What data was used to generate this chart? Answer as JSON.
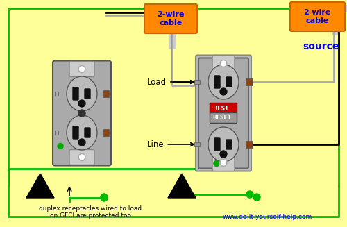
{
  "bg_color": "#FFFF99",
  "wire_black": "#000000",
  "wire_white": "#AAAAAA",
  "wire_green": "#00BB00",
  "outlet_gray": "#AAAAAA",
  "outlet_face": "#BBBBBB",
  "outlet_border": "#666666",
  "terminal_brown": "#8B4513",
  "label_load": "Load",
  "label_line": "Line",
  "label_cable1": "2-wire\ncable",
  "label_cable2": "2-wire\ncable",
  "label_source": "source",
  "label_bottom": "duplex receptacles wired to load\non GFCI are protected too",
  "label_url": "www.do-it-yourself-help.com",
  "orange_box": "#FF8800",
  "blue_text": "#0000EE",
  "red_button": "#CC0000",
  "reset_gray": "#999999",
  "screw_white": "#FFFFFF",
  "screw_ring": "#AAAAAA",
  "cable_sheath": "#AAAAAA"
}
